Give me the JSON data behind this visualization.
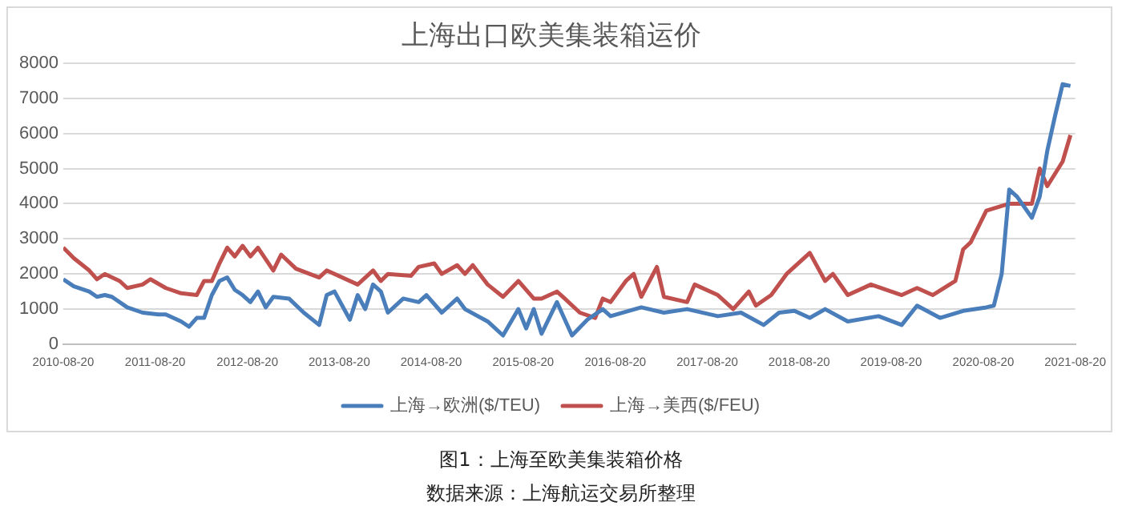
{
  "chart_data": {
    "type": "line",
    "title": "上海出口欧美集装箱运价",
    "xlim": [
      "2010-08-20",
      "2021-08-20"
    ],
    "xticks": [
      "2010-08-20",
      "2011-08-20",
      "2012-08-20",
      "2013-08-20",
      "2014-08-20",
      "2015-08-20",
      "2016-08-20",
      "2017-08-20",
      "2018-08-20",
      "2019-08-20",
      "2020-08-20",
      "2021-08-20"
    ],
    "ylim": [
      0,
      8000
    ],
    "yticks": [
      0,
      1000,
      2000,
      3000,
      4000,
      5000,
      6000,
      7000,
      8000
    ],
    "grid": "y",
    "legend": "bottom",
    "marker": "none",
    "line_style": "solid",
    "series": [
      {
        "name": "上海→欧洲($/TEU)",
        "color": "#4a7ebb",
        "x": [
          "2010-08-20",
          "2010-10",
          "2010-12",
          "2011-01",
          "2011-02",
          "2011-03",
          "2011-05",
          "2011-07",
          "2011-09",
          "2011-10",
          "2011-12",
          "2012-01",
          "2012-02",
          "2012-03",
          "2012-04",
          "2012-05",
          "2012-06",
          "2012-07",
          "2012-08",
          "2012-09",
          "2012-10",
          "2012-11",
          "2012-12",
          "2013-02",
          "2013-04",
          "2013-06",
          "2013-07",
          "2013-08",
          "2013-10",
          "2013-11",
          "2013-12",
          "2014-01",
          "2014-02",
          "2014-03",
          "2014-05",
          "2014-07",
          "2014-08",
          "2014-10",
          "2014-12",
          "2015-01",
          "2015-04",
          "2015-06",
          "2015-08",
          "2015-09",
          "2015-10",
          "2015-11",
          "2016-01",
          "2016-03",
          "2016-05",
          "2016-07",
          "2016-08",
          "2016-12",
          "2017-03",
          "2017-06",
          "2017-10",
          "2018-01",
          "2018-04",
          "2018-06",
          "2018-08",
          "2018-10",
          "2018-12",
          "2019-03",
          "2019-07",
          "2019-10",
          "2019-12",
          "2020-03",
          "2020-06",
          "2020-09",
          "2020-10",
          "2020-11",
          "2020-12",
          "2021-01",
          "2021-03",
          "2021-04",
          "2021-05",
          "2021-06",
          "2021-07",
          "2021-08"
        ],
        "values": [
          1850,
          1650,
          1500,
          1350,
          1400,
          1350,
          1050,
          900,
          850,
          850,
          650,
          500,
          750,
          750,
          1400,
          1800,
          1900,
          1550,
          1400,
          1200,
          1500,
          1050,
          1350,
          1300,
          900,
          550,
          1400,
          1500,
          700,
          1400,
          1000,
          1700,
          1500,
          900,
          1300,
          1200,
          1400,
          900,
          1300,
          1000,
          650,
          250,
          1000,
          450,
          1000,
          300,
          1200,
          250,
          700,
          1000,
          800,
          1050,
          900,
          1000,
          800,
          900,
          550,
          900,
          950,
          750,
          1000,
          650,
          800,
          550,
          1100,
          750,
          950,
          1050,
          1100,
          2000,
          4400,
          4200,
          3600,
          4200,
          5500,
          6500,
          7400,
          7350
        ]
      },
      {
        "name": "上海→美西($/FEU)",
        "color": "#c0504d",
        "x": [
          "2010-08-20",
          "2010-10",
          "2010-12",
          "2011-01",
          "2011-02",
          "2011-04",
          "2011-05",
          "2011-07",
          "2011-08",
          "2011-10",
          "2011-12",
          "2012-02",
          "2012-03",
          "2012-04",
          "2012-05",
          "2012-06",
          "2012-07",
          "2012-08",
          "2012-09",
          "2012-10",
          "2012-12",
          "2013-01",
          "2013-03",
          "2013-06",
          "2013-07",
          "2013-11",
          "2014-01",
          "2014-02",
          "2014-03",
          "2014-06",
          "2014-07",
          "2014-09",
          "2014-10",
          "2014-12",
          "2015-01",
          "2015-02",
          "2015-04",
          "2015-06",
          "2015-08",
          "2015-10",
          "2015-11",
          "2016-01",
          "2016-02",
          "2016-04",
          "2016-06",
          "2016-07",
          "2016-08",
          "2016-10",
          "2016-11",
          "2016-12",
          "2017-02",
          "2017-03",
          "2017-06",
          "2017-07",
          "2017-10",
          "2017-12",
          "2018-02",
          "2018-03",
          "2018-05",
          "2018-07",
          "2018-10",
          "2018-12",
          "2019-01",
          "2019-03",
          "2019-06",
          "2019-10",
          "2019-12",
          "2020-02",
          "2020-05",
          "2020-06",
          "2020-07",
          "2020-09",
          "2020-12",
          "2021-03",
          "2021-04",
          "2021-05",
          "2021-07",
          "2021-08"
        ],
        "values": [
          2750,
          2450,
          2100,
          1850,
          2000,
          1800,
          1600,
          1700,
          1850,
          1600,
          1450,
          1400,
          1800,
          1800,
          2300,
          2750,
          2500,
          2800,
          2500,
          2750,
          2100,
          2550,
          2150,
          1900,
          2100,
          1700,
          2100,
          1800,
          2000,
          1950,
          2200,
          2300,
          2000,
          2250,
          2000,
          2250,
          1700,
          1350,
          1800,
          1300,
          1300,
          1500,
          1300,
          900,
          750,
          1300,
          1200,
          1800,
          2000,
          1350,
          2200,
          1350,
          1200,
          1700,
          1400,
          1000,
          1500,
          1100,
          1400,
          2000,
          2600,
          1800,
          2000,
          1400,
          1700,
          1400,
          1600,
          1400,
          1800,
          2700,
          2900,
          3800,
          4000,
          4000,
          5000,
          4500,
          5200,
          5950
        ]
      }
    ],
    "annotations": [
      "图1：上海至欧美集装箱价格",
      "数据来源：上海航运交易所整理"
    ]
  }
}
